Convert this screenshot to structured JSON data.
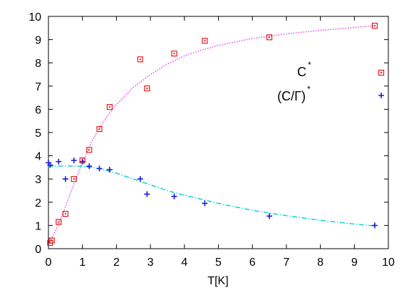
{
  "chart_data": {
    "type": "scatter",
    "title": "",
    "xlabel": "T[K]",
    "ylabel": "",
    "xlim": [
      0,
      10
    ],
    "ylim": [
      0,
      10
    ],
    "xticks": [
      "0",
      "1",
      "2",
      "3",
      "4",
      "5",
      "6",
      "7",
      "8",
      "9",
      "10"
    ],
    "yticks": [
      "0",
      "1",
      "2",
      "3",
      "4",
      "5",
      "6",
      "7",
      "8",
      "9",
      "10"
    ],
    "grid": false,
    "legend_position": "right",
    "series": [
      {
        "name": "C",
        "name_superscript": "*",
        "marker": "square",
        "color": "#e41a1c",
        "x": [
          0.05,
          0.1,
          0.3,
          0.5,
          0.75,
          1.0,
          1.2,
          1.5,
          1.8,
          2.7,
          2.9,
          3.7,
          4.6,
          6.5,
          9.6
        ],
        "y": [
          0.25,
          0.35,
          1.15,
          1.5,
          3.0,
          3.8,
          4.25,
          5.15,
          6.1,
          8.15,
          6.9,
          8.4,
          8.95,
          9.1,
          9.6
        ]
      },
      {
        "name": "(C/Γ)",
        "name_superscript": "*",
        "marker": "plus",
        "color": "#1a1ad0",
        "x": [
          0.0,
          0.05,
          0.3,
          0.5,
          0.75,
          1.0,
          1.2,
          1.5,
          1.8,
          2.7,
          2.9,
          3.7,
          4.6,
          6.5,
          9.6
        ],
        "y": [
          3.7,
          3.6,
          3.75,
          3.0,
          3.8,
          3.75,
          3.55,
          3.45,
          3.4,
          3.0,
          2.35,
          2.25,
          1.95,
          1.4,
          1.0
        ]
      }
    ],
    "fits": [
      {
        "color": "#e040e0",
        "style": "dotted",
        "x": [
          0,
          0.25,
          0.5,
          0.75,
          1.0,
          1.25,
          1.5,
          1.75,
          2.0,
          2.5,
          3.0,
          3.5,
          4.0,
          4.5,
          5.0,
          6.0,
          7.0,
          8.0,
          9.0,
          9.6
        ],
        "y": [
          0.2,
          0.9,
          1.8,
          2.8,
          3.7,
          4.55,
          5.2,
          5.75,
          6.2,
          6.95,
          7.5,
          7.95,
          8.3,
          8.55,
          8.75,
          9.05,
          9.25,
          9.4,
          9.52,
          9.6
        ]
      },
      {
        "color": "#00d0d0",
        "style": "dash-dot",
        "x": [
          0,
          0.5,
          1.0,
          1.5,
          2.0,
          2.5,
          3.0,
          3.5,
          4.0,
          5.0,
          6.0,
          7.0,
          8.0,
          9.0,
          9.6
        ],
        "y": [
          3.55,
          3.56,
          3.55,
          3.45,
          3.25,
          3.0,
          2.75,
          2.5,
          2.3,
          1.95,
          1.65,
          1.42,
          1.22,
          1.06,
          0.98
        ]
      }
    ]
  }
}
